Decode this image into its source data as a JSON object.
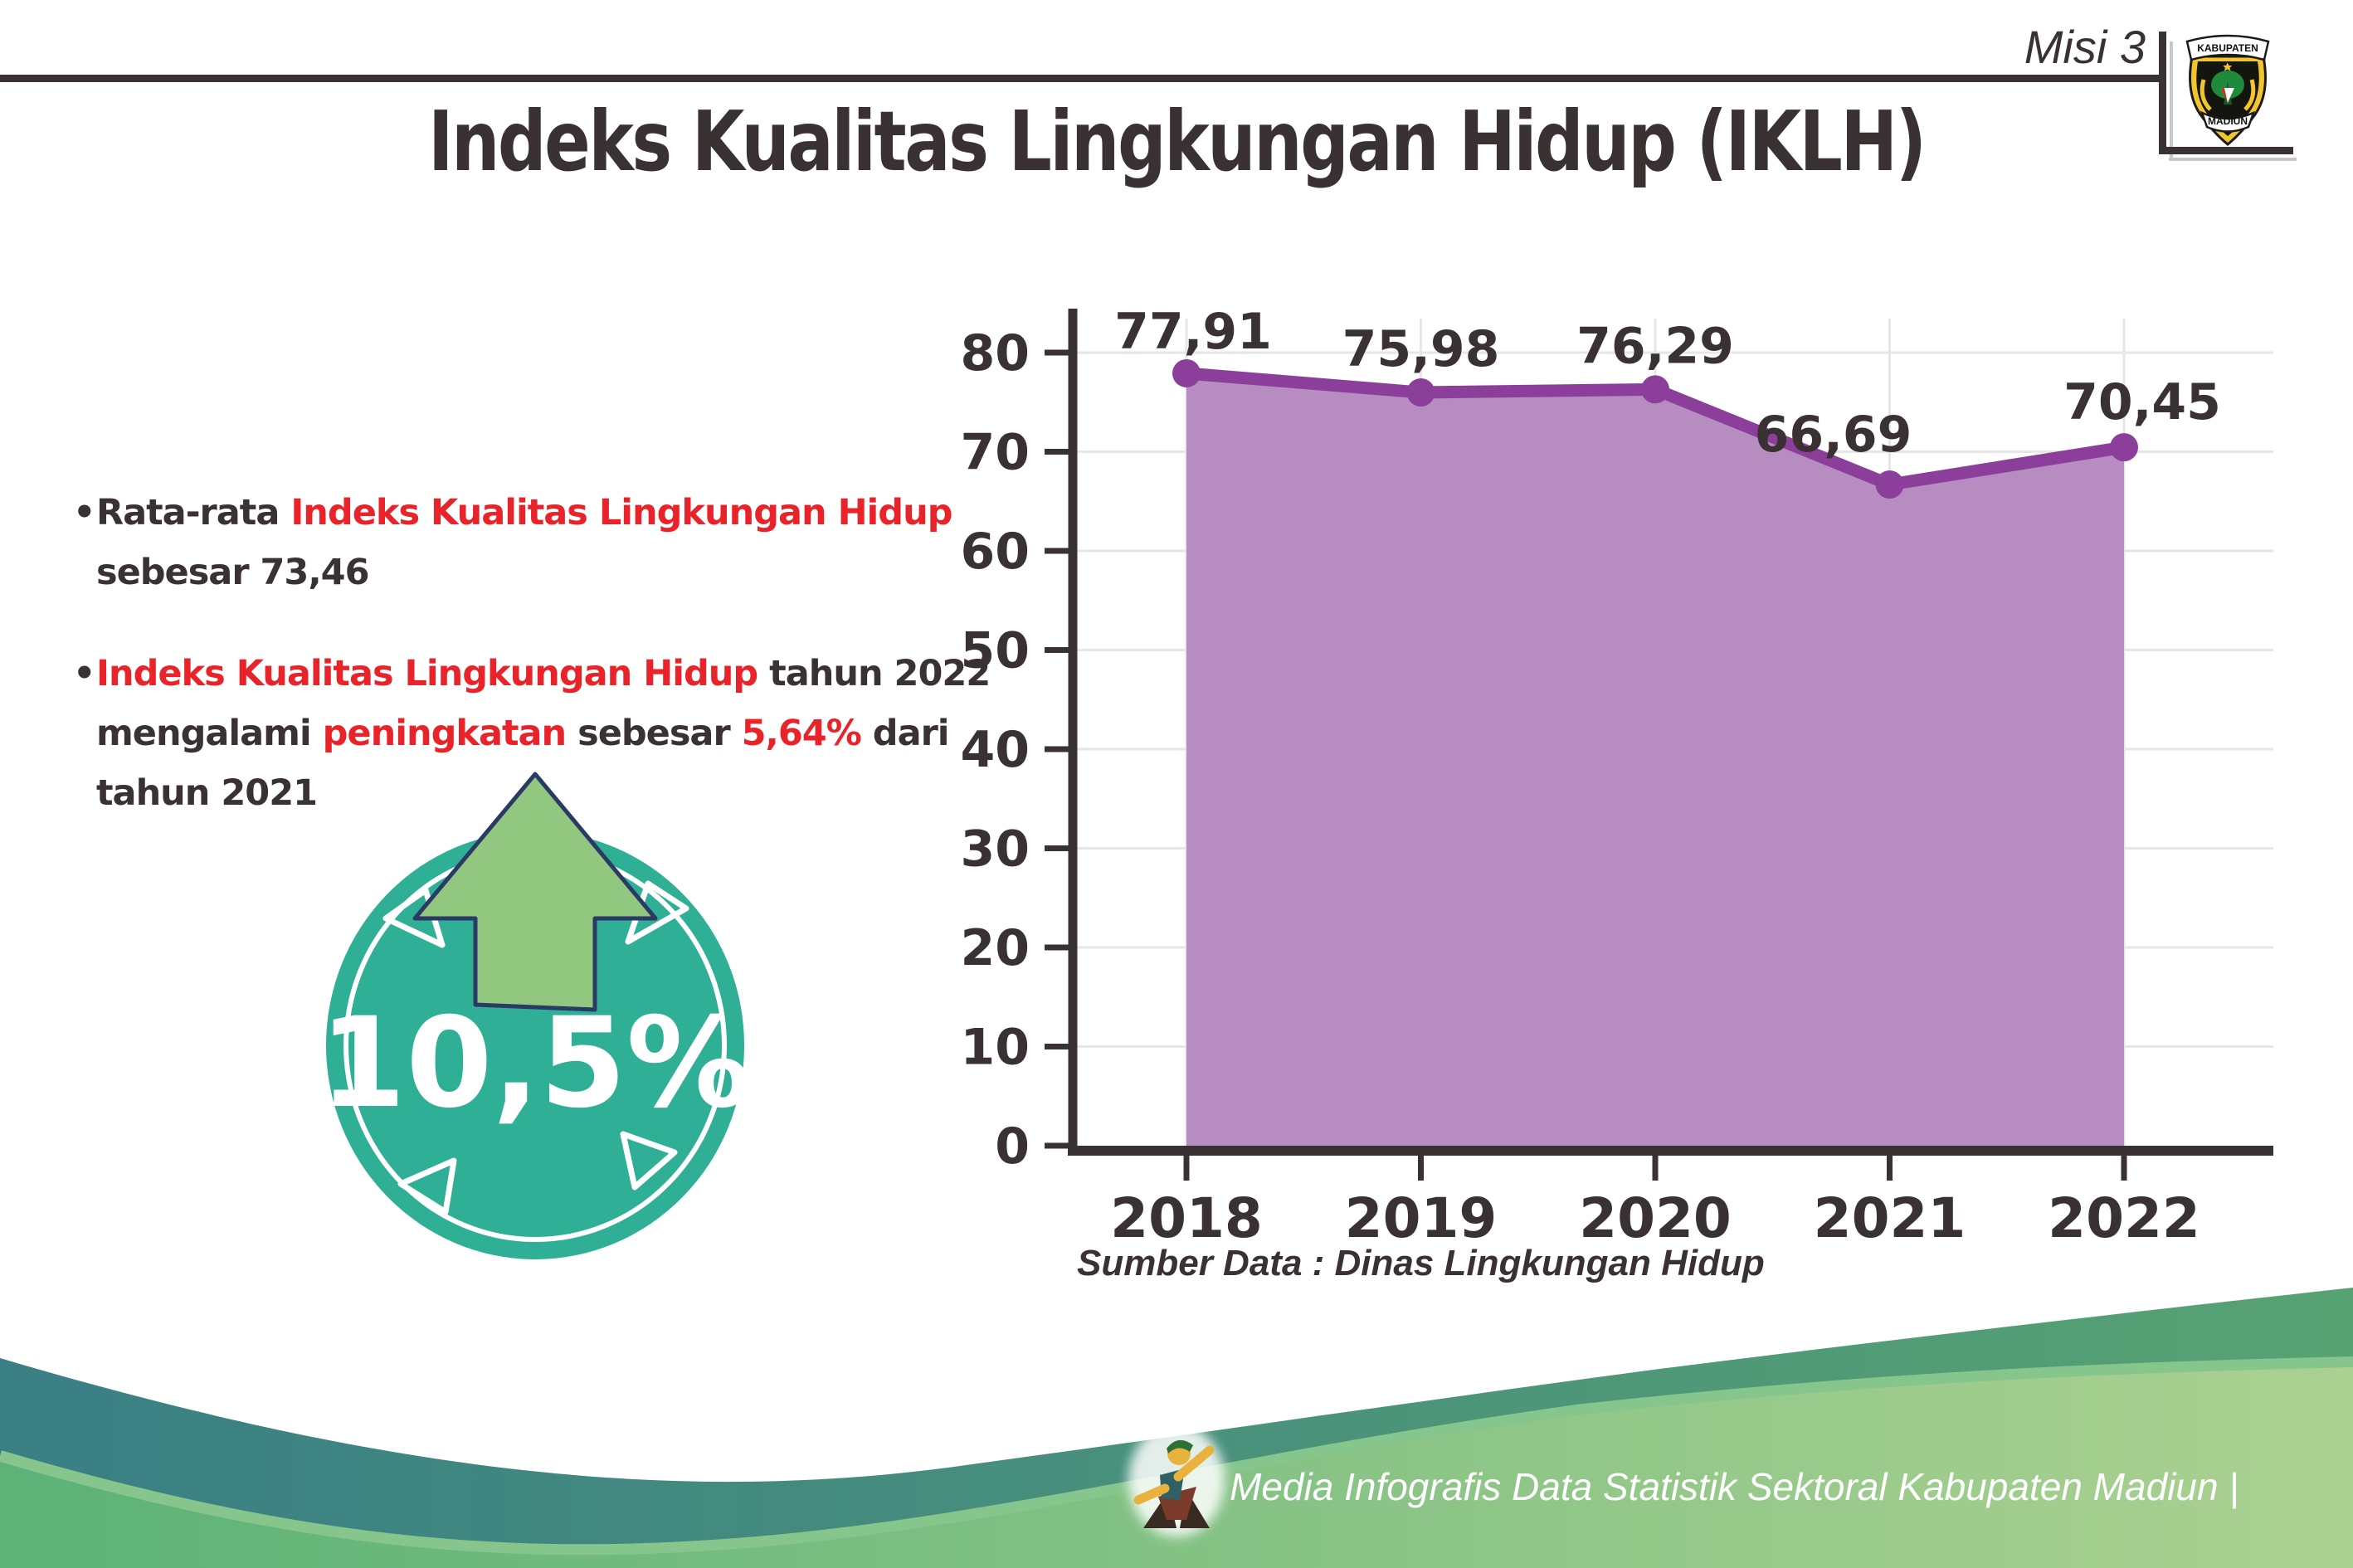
{
  "header": {
    "misi_label": "Misi 3",
    "title": "Indeks Kualitas Lingkungan Hidup (IKLH)",
    "logo": {
      "top_text": "KABUPATEN",
      "bottom_text": "MADIUN"
    }
  },
  "bullets": {
    "marker": "•",
    "items": [
      {
        "lines": [
          {
            "segments": [
              {
                "t": "Rata-rata ",
                "c": "dark"
              },
              {
                "t": "Indeks Kualitas Lingkungan Hidup",
                "c": "red"
              }
            ]
          },
          {
            "segments": [
              {
                "t": "sebesar 73,46",
                "c": "dark"
              }
            ]
          }
        ]
      },
      {
        "lines": [
          {
            "segments": [
              {
                "t": "Indeks Kualitas Lingkungan Hidup",
                "c": "red"
              },
              {
                "t": " tahun 2022",
                "c": "dark"
              }
            ]
          },
          {
            "segments": [
              {
                "t": "mengalami ",
                "c": "dark"
              },
              {
                "t": "peningkatan",
                "c": "red"
              },
              {
                "t": " sebesar ",
                "c": "dark"
              },
              {
                "t": "5,64%",
                "c": "red"
              },
              {
                "t": " dari",
                "c": "dark"
              }
            ]
          },
          {
            "segments": [
              {
                "t": "tahun 2021",
                "c": "dark"
              }
            ]
          }
        ]
      }
    ]
  },
  "badge": {
    "value": "10,5%",
    "direction": "up"
  },
  "chart_data": {
    "type": "area",
    "title": "Indeks Kualitas Lingkungan Hidup (IKLH)",
    "x": [
      "2018",
      "2019",
      "2020",
      "2021",
      "2022"
    ],
    "series": [
      {
        "name": "IKLH",
        "values": [
          77.91,
          75.98,
          76.29,
          66.69,
          70.45
        ]
      }
    ],
    "value_labels": [
      "77,91",
      "75,98",
      "76,29",
      "66,69",
      "70,45"
    ],
    "ylim": [
      0,
      80
    ],
    "yticks": [
      0,
      10,
      20,
      30,
      40,
      50,
      60,
      70,
      80
    ],
    "grid": true,
    "legend_position": "none",
    "source": "Sumber Data : Dinas Lingkungan Hidup"
  },
  "footer": {
    "caption": "Media Infografis Data Statistik Sektoral Kabupaten Madiun |"
  },
  "colors": {
    "dark": "#3a3132",
    "red": "#e8232a",
    "chart_fill": "#b68cc1",
    "chart_line": "#8b3f9b",
    "chart_marker": "#8b3f9b",
    "grid": "#e6e6e6",
    "badge_teal": "#2fb096",
    "arrow_green": "#92c77f",
    "arrow_outline": "#2b3a64",
    "footer_teal": "#3a7f84",
    "footer_teal_right": "#57a273",
    "footer_green": "#5cb277",
    "footer_light_green": "#abd191",
    "footer_rim": "#86c58c"
  }
}
